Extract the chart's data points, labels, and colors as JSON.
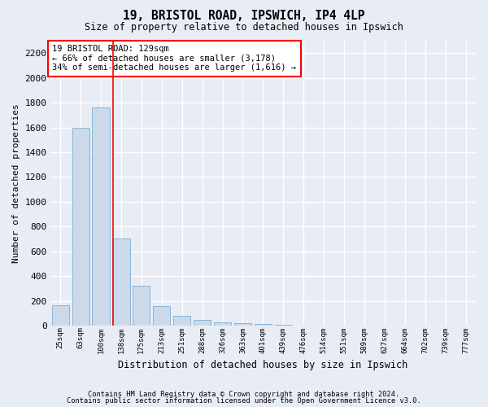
{
  "title": "19, BRISTOL ROAD, IPSWICH, IP4 4LP",
  "subtitle": "Size of property relative to detached houses in Ipswich",
  "xlabel": "Distribution of detached houses by size in Ipswich",
  "ylabel": "Number of detached properties",
  "footnote1": "Contains HM Land Registry data © Crown copyright and database right 2024.",
  "footnote2": "Contains public sector information licensed under the Open Government Licence v3.0.",
  "bar_labels": [
    "25sqm",
    "63sqm",
    "100sqm",
    "138sqm",
    "175sqm",
    "213sqm",
    "251sqm",
    "288sqm",
    "326sqm",
    "363sqm",
    "401sqm",
    "439sqm",
    "476sqm",
    "514sqm",
    "551sqm",
    "589sqm",
    "627sqm",
    "664sqm",
    "702sqm",
    "739sqm",
    "777sqm"
  ],
  "bar_values": [
    165,
    1595,
    1760,
    700,
    320,
    160,
    80,
    45,
    25,
    20,
    15,
    10,
    0,
    0,
    0,
    0,
    0,
    0,
    0,
    0,
    0
  ],
  "bar_color": "#ccd9ea",
  "bar_edge_color": "#7aaed4",
  "ylim": [
    0,
    2300
  ],
  "yticks": [
    0,
    200,
    400,
    600,
    800,
    1000,
    1200,
    1400,
    1600,
    1800,
    2000,
    2200
  ],
  "property_size_label": "19 BRISTOL ROAD: 129sqm",
  "annotation_line1": "← 66% of detached houses are smaller (3,178)",
  "annotation_line2": "34% of semi-detached houses are larger (1,616) →",
  "vline_x_index": 2.62,
  "background_color": "#e8edf5",
  "grid_color": "#ffffff"
}
